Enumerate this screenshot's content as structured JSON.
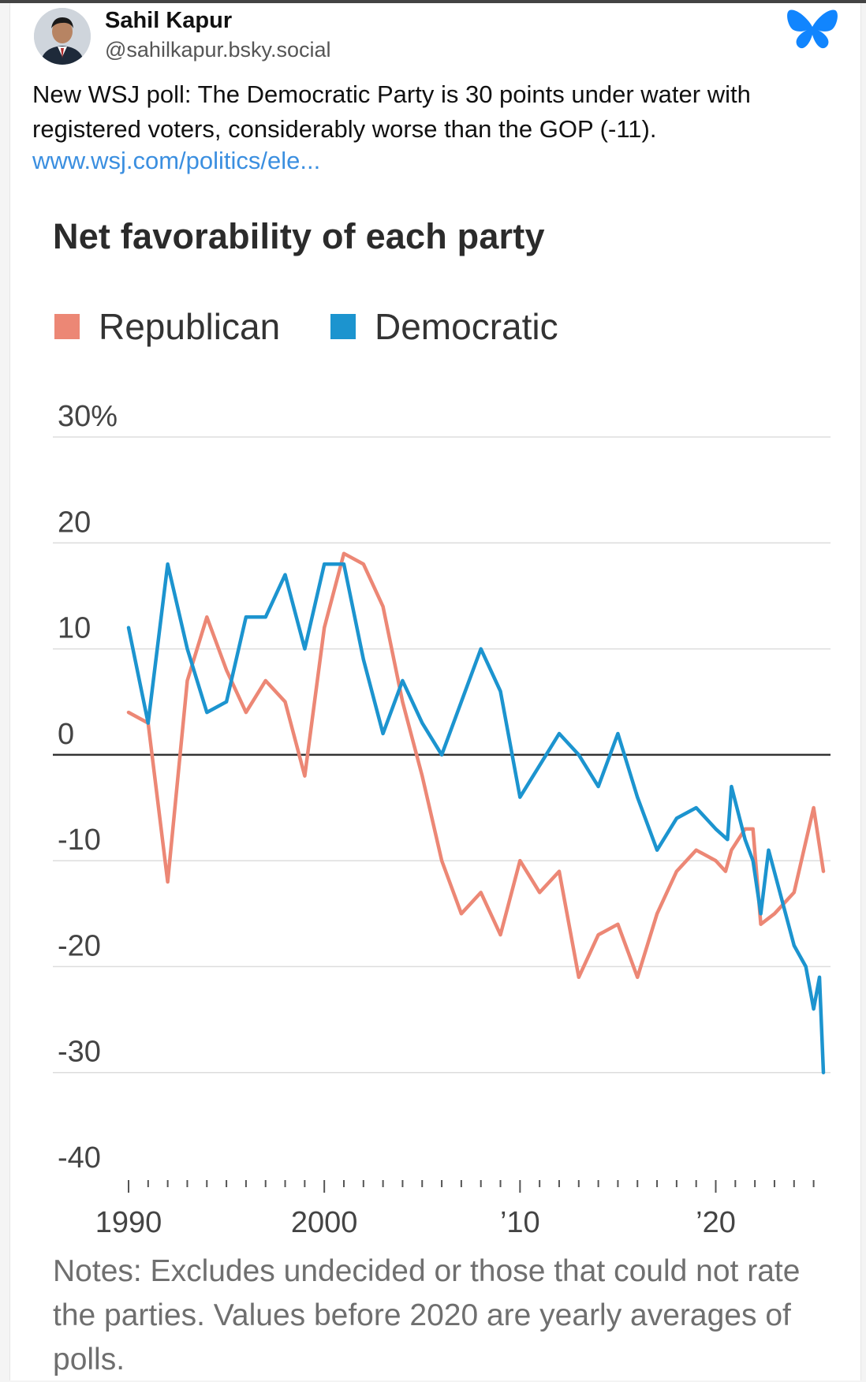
{
  "post": {
    "author": {
      "name": "Sahil Kapur",
      "handle": "@sahilkapur.bsky.social"
    },
    "text": "New WSJ poll: The Democratic Party is 30 points under water with registered voters, considerably worse than the GOP (-11).",
    "link": "www.wsj.com/politics/ele..."
  },
  "icons": {
    "avatar": "avatar-photo",
    "bluesky": "bluesky-butterfly-icon"
  },
  "colors": {
    "republican": "#ec8775",
    "democratic": "#1c94cf",
    "link": "#3b8fe0",
    "bluesky": "#1185fe"
  },
  "chart_data": {
    "type": "line",
    "title": "Net favorability of each party",
    "notes": "Notes: Excludes undecided or those that could not rate the parties. Values before 2020 are yearly averages of polls.",
    "y_ticks": [
      "30%",
      "20",
      "10",
      "0",
      "-10",
      "-20",
      "-30",
      "-40"
    ],
    "y_tick_values": [
      30,
      20,
      10,
      0,
      -10,
      -20,
      -30,
      -40
    ],
    "ylim": [
      -40,
      30
    ],
    "x_ticks": [
      "1990",
      "2000",
      "’10",
      "’20"
    ],
    "x_tick_values": [
      1990,
      2000,
      2010,
      2020
    ],
    "xlim": [
      1990,
      2025.5
    ],
    "grid": true,
    "legend_position": "top-left",
    "series": [
      {
        "name": "Republican",
        "color": "#ec8775",
        "points": [
          [
            1990,
            4
          ],
          [
            1991,
            3
          ],
          [
            1992,
            -12
          ],
          [
            1993,
            7
          ],
          [
            1994,
            13
          ],
          [
            1995,
            8
          ],
          [
            1996,
            4
          ],
          [
            1997,
            7
          ],
          [
            1998,
            5
          ],
          [
            1999,
            -2
          ],
          [
            2000,
            12
          ],
          [
            2001,
            19
          ],
          [
            2002,
            18
          ],
          [
            2003,
            14
          ],
          [
            2004,
            5
          ],
          [
            2005,
            -2
          ],
          [
            2006,
            -10
          ],
          [
            2007,
            -15
          ],
          [
            2008,
            -13
          ],
          [
            2009,
            -17
          ],
          [
            2010,
            -10
          ],
          [
            2011,
            -13
          ],
          [
            2012,
            -11
          ],
          [
            2013,
            -21
          ],
          [
            2014,
            -17
          ],
          [
            2015,
            -16
          ],
          [
            2016,
            -21
          ],
          [
            2017,
            -15
          ],
          [
            2018,
            -11
          ],
          [
            2019,
            -9
          ],
          [
            2020,
            -10
          ],
          [
            2020.5,
            -11
          ],
          [
            2020.8,
            -9
          ],
          [
            2021.5,
            -7
          ],
          [
            2021.9,
            -7
          ],
          [
            2022.3,
            -16
          ],
          [
            2023,
            -15
          ],
          [
            2024,
            -13
          ],
          [
            2025,
            -5
          ],
          [
            2025.5,
            -11
          ]
        ]
      },
      {
        "name": "Democratic",
        "color": "#1c94cf",
        "points": [
          [
            1990,
            12
          ],
          [
            1991,
            3
          ],
          [
            1992,
            18
          ],
          [
            1993,
            10
          ],
          [
            1994,
            4
          ],
          [
            1995,
            5
          ],
          [
            1996,
            13
          ],
          [
            1997,
            13
          ],
          [
            1998,
            17
          ],
          [
            1999,
            10
          ],
          [
            2000,
            18
          ],
          [
            2001,
            18
          ],
          [
            2002,
            9
          ],
          [
            2003,
            2
          ],
          [
            2004,
            7
          ],
          [
            2005,
            3
          ],
          [
            2006,
            0
          ],
          [
            2007,
            5
          ],
          [
            2008,
            10
          ],
          [
            2009,
            6
          ],
          [
            2010,
            -4
          ],
          [
            2011,
            -1
          ],
          [
            2012,
            2
          ],
          [
            2013,
            0
          ],
          [
            2014,
            -3
          ],
          [
            2015,
            2
          ],
          [
            2016,
            -4
          ],
          [
            2017,
            -9
          ],
          [
            2018,
            -6
          ],
          [
            2019,
            -5
          ],
          [
            2020,
            -7
          ],
          [
            2020.6,
            -8
          ],
          [
            2020.8,
            -3
          ],
          [
            2021.5,
            -8
          ],
          [
            2021.9,
            -10
          ],
          [
            2022.3,
            -15
          ],
          [
            2022.7,
            -9
          ],
          [
            2024,
            -18
          ],
          [
            2024.6,
            -20
          ],
          [
            2025,
            -24
          ],
          [
            2025.3,
            -21
          ],
          [
            2025.5,
            -30
          ]
        ]
      }
    ]
  }
}
